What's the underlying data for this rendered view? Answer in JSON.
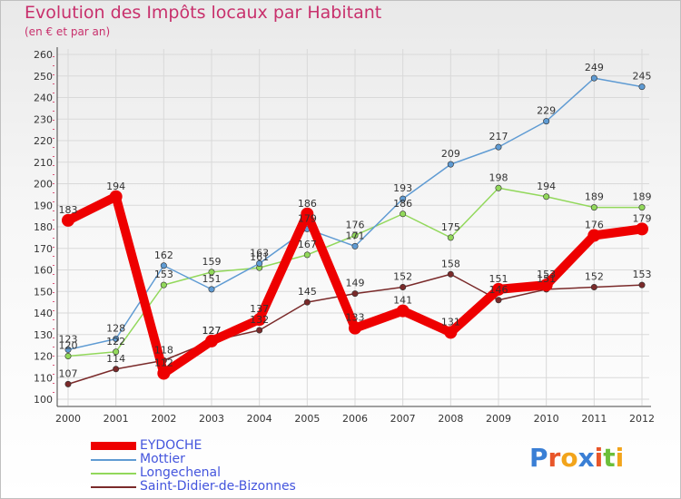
{
  "header": {
    "title": "Evolution des Impôts locaux par Habitant",
    "subtitle": "(en € et par an)"
  },
  "logo": {
    "text": "Proxiti",
    "letters": [
      {
        "ch": "P",
        "color": "#3a7fd5"
      },
      {
        "ch": "r",
        "color": "#e8562a"
      },
      {
        "ch": "o",
        "color": "#f2a41b"
      },
      {
        "ch": "x",
        "color": "#3a7fd5"
      },
      {
        "ch": "i",
        "color": "#e8562a"
      },
      {
        "ch": "t",
        "color": "#6cbf3a"
      },
      {
        "ch": "i",
        "color": "#f2a41b"
      }
    ]
  },
  "chart_data": {
    "type": "line",
    "title": "Evolution des Impôts locaux par Habitant",
    "subtitle": "(en € et par an)",
    "xlabel": "",
    "ylabel": "",
    "x": [
      "2000",
      "2001",
      "2002",
      "2003",
      "2004",
      "2005",
      "2006",
      "2007",
      "2008",
      "2009",
      "2010",
      "2011",
      "2012"
    ],
    "ylim": [
      100,
      260
    ],
    "yticks": [
      100,
      110,
      120,
      130,
      140,
      150,
      160,
      170,
      180,
      190,
      200,
      210,
      220,
      230,
      240,
      250,
      260
    ],
    "grid": true,
    "legend_position": "bottom-left",
    "series": [
      {
        "name": "EYDOCHE",
        "color": "#ee0000",
        "thick": true,
        "values": [
          183,
          194,
          112,
          127,
          137,
          186,
          133,
          141,
          131,
          151,
          153,
          176,
          179
        ],
        "labels": [
          "183",
          "194",
          "112",
          "127",
          "137",
          "186",
          "133",
          "141",
          "131",
          "151",
          "153",
          "176",
          "179"
        ]
      },
      {
        "name": "Mottier",
        "color": "#5f9bd3",
        "thick": false,
        "values": [
          123,
          128,
          162,
          151,
          163,
          179,
          171,
          193,
          209,
          217,
          229,
          249,
          245
        ],
        "labels": [
          "123",
          "128",
          "162",
          "151",
          "163",
          "179",
          "171",
          "193",
          "209",
          "217",
          "229",
          "249",
          "245"
        ]
      },
      {
        "name": "Longechenal",
        "color": "#92d85b",
        "thick": false,
        "values": [
          120,
          122,
          153,
          159,
          161,
          167,
          176,
          186,
          175,
          198,
          194,
          189,
          189
        ],
        "labels": [
          "120",
          "122",
          "153",
          "159",
          "161",
          "167",
          "176",
          "186",
          "175",
          "198",
          "194",
          "189",
          "189"
        ]
      },
      {
        "name": "Saint-Didier-de-Bizonnes",
        "color": "#7a2a2a",
        "thick": false,
        "values": [
          107,
          114,
          118,
          127,
          132,
          145,
          149,
          152,
          158,
          146,
          151,
          152,
          153
        ],
        "labels": [
          "107",
          "114",
          "118",
          "127",
          "132",
          "145",
          "149",
          "152",
          "158",
          "146",
          "151",
          "152",
          "153"
        ]
      }
    ]
  }
}
